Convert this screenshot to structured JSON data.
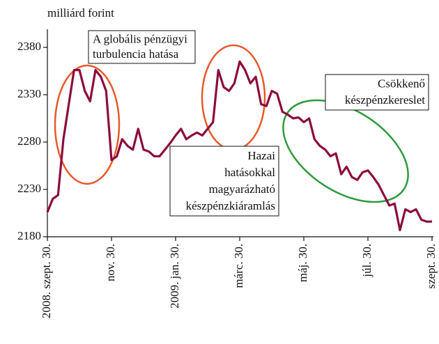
{
  "chart_data": {
    "type": "line",
    "y_label": "milliárd forint",
    "categories": [
      "2008. szept. 30.",
      null,
      null,
      null,
      null,
      null,
      null,
      null,
      null,
      null,
      null,
      null,
      "nov. 30.",
      null,
      null,
      null,
      null,
      null,
      null,
      null,
      null,
      null,
      null,
      null,
      "2009. jan. 30.",
      null,
      null,
      null,
      null,
      null,
      null,
      null,
      null,
      null,
      null,
      null,
      "márc. 30.",
      null,
      null,
      null,
      null,
      null,
      null,
      null,
      null,
      null,
      null,
      null,
      "máj. 30.",
      null,
      null,
      null,
      null,
      null,
      null,
      null,
      null,
      null,
      null,
      null,
      "júl. 30.",
      null,
      null,
      null,
      null,
      null,
      null,
      null,
      null,
      null,
      null,
      null,
      "szept. 30."
    ],
    "series": [
      {
        "color": "#8c0b3c",
        "values": [
          2206,
          2220,
          2224,
          2283,
          2320,
          2356,
          2356,
          2334,
          2323,
          2356,
          2349,
          2334,
          2261,
          2265,
          2283,
          2276,
          2272,
          2294,
          2272,
          2270,
          2265,
          2265,
          2272,
          2279,
          2287,
          2294,
          2283,
          2287,
          2290,
          2287,
          2294,
          2301,
          2356,
          2338,
          2334,
          2342,
          2365,
          2356,
          2342,
          2349,
          2320,
          2318,
          2334,
          2331,
          2312,
          2309,
          2305,
          2306,
          2301,
          2305,
          2283,
          2276,
          2272,
          2265,
          2268,
          2246,
          2254,
          2243,
          2240,
          2248,
          2250,
          2243,
          2235,
          2224,
          2213,
          2215,
          2187,
          2209,
          2206,
          2209,
          2198,
          2196,
          2196
        ]
      }
    ],
    "ylim": [
      2180,
      2395
    ],
    "yticks": [
      2180,
      2230,
      2280,
      2330,
      2380
    ],
    "annotations": [
      [
        "A globális pénzügyi",
        "turbulencia hatása"
      ],
      [
        "Hazai",
        "hatásokkal",
        "magyarázható",
        "készpénzkiáramlás"
      ],
      [
        "Csökkenő",
        "készpénzkereslet"
      ]
    ]
  }
}
